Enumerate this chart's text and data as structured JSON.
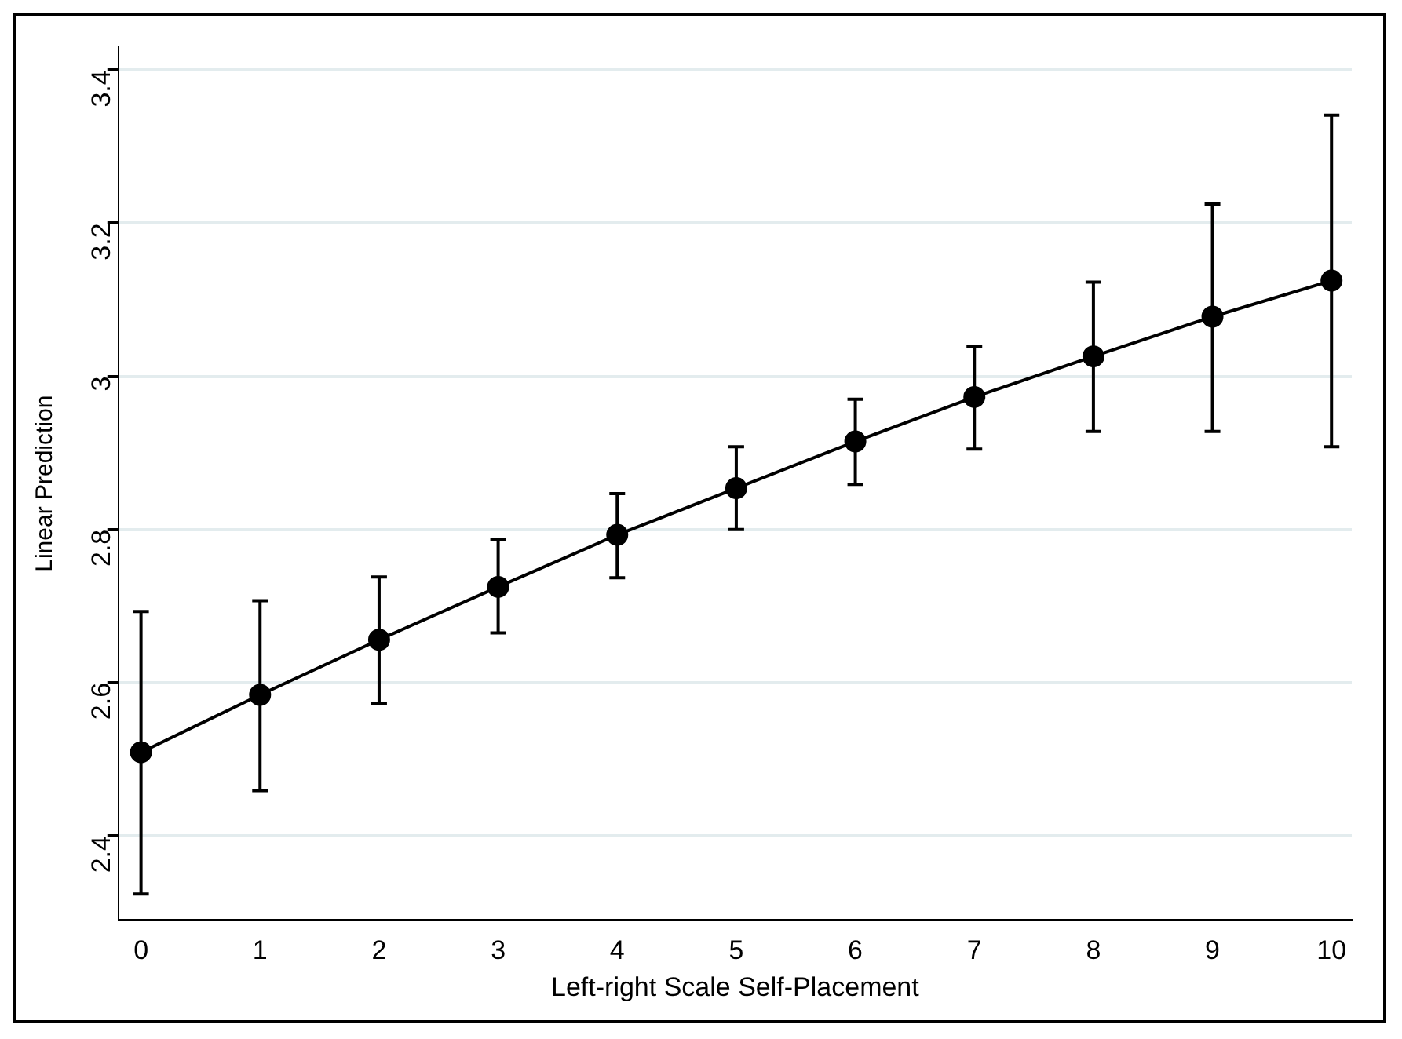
{
  "chart_data": {
    "type": "line",
    "xlabel": "Left-right Scale Self-Placement",
    "ylabel": "Linear Prediction",
    "x": [
      0,
      1,
      2,
      3,
      4,
      5,
      6,
      7,
      8,
      9,
      10
    ],
    "series": [
      {
        "color": "#000000",
        "values": [
          2.509,
          2.584,
          2.656,
          2.725,
          2.793,
          2.854,
          2.915,
          2.973,
          3.026,
          3.078,
          3.125
        ],
        "errors": [
          [
            2.324,
            2.693
          ],
          [
            2.459,
            2.707
          ],
          [
            2.573,
            2.738
          ],
          [
            2.665,
            2.787
          ],
          [
            2.737,
            2.847
          ],
          [
            2.8,
            2.908
          ],
          [
            2.859,
            2.97
          ],
          [
            2.905,
            3.039
          ],
          [
            2.928,
            3.123
          ],
          [
            2.928,
            3.225
          ],
          [
            2.908,
            3.341
          ]
        ]
      }
    ],
    "xlim": [
      -0.19,
      10.17
    ],
    "xticks": [
      0,
      1,
      2,
      3,
      4,
      5,
      6,
      7,
      8,
      9,
      10
    ],
    "ylim": [
      2.29,
      3.43
    ],
    "yticks": [
      2.4,
      2.6,
      2.8,
      3,
      3.2,
      3.4
    ],
    "grid": "y",
    "legend": false,
    "marker": "circle",
    "line_style": "solid"
  }
}
